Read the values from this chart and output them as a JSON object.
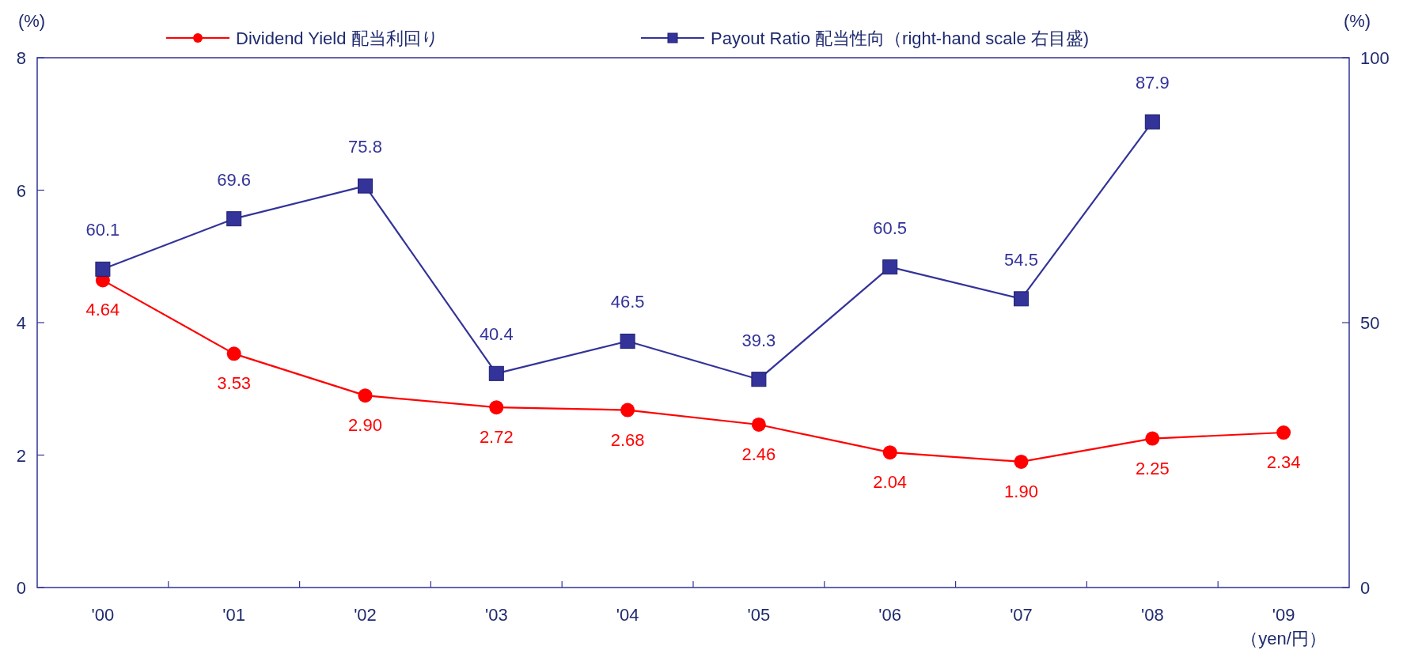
{
  "chart_data": {
    "type": "line",
    "categories": [
      "'00",
      "'01",
      "'02",
      "'03",
      "'04",
      "'05",
      "'06",
      "'07",
      "'08",
      "'09"
    ],
    "xlabel": "（yen/円）",
    "ylabel": "(%)",
    "y2label": "(%)",
    "ylim": [
      0,
      8
    ],
    "yticks": [
      0,
      2,
      4,
      6,
      8
    ],
    "y2lim": [
      0,
      100
    ],
    "y2ticks": [
      0,
      50,
      100
    ],
    "legend": "top",
    "grid": false,
    "series": [
      {
        "name": "Dividend Yield 配当利回り",
        "color": "#ff0000",
        "marker": "circle",
        "values": [
          4.64,
          3.53,
          2.9,
          2.72,
          2.68,
          2.46,
          2.04,
          1.9,
          2.25,
          2.34
        ],
        "value_labels": [
          "4.64",
          "3.53",
          "2.90",
          "2.72",
          "2.68",
          "2.46",
          "2.04",
          "1.90",
          "2.25",
          "2.34"
        ]
      },
      {
        "name": "Payout Ratio 配当性向（right-hand scale 右目盛)",
        "color": "#333399",
        "marker": "square",
        "axis": "y2",
        "values": [
          60.1,
          69.6,
          75.8,
          40.4,
          46.5,
          39.3,
          60.5,
          54.5,
          87.9,
          null
        ],
        "value_labels": [
          "60.1",
          "69.6",
          "75.8",
          "40.4",
          "46.5",
          "39.3",
          "60.5",
          "54.5",
          "87.9",
          null
        ]
      }
    ]
  }
}
